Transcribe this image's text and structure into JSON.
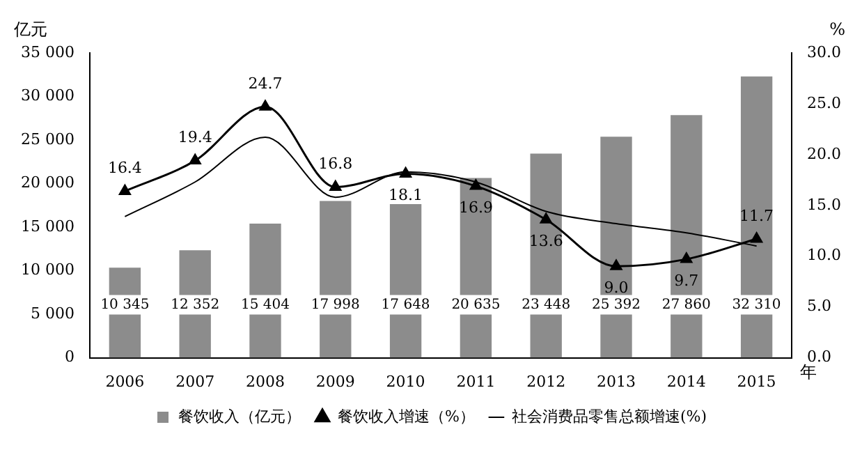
{
  "chart_data": {
    "type": "bar",
    "categories": [
      "2006",
      "2007",
      "2008",
      "2009",
      "2010",
      "2011",
      "2012",
      "2013",
      "2014",
      "2015"
    ],
    "xlabel": "年",
    "ylabel": "亿元",
    "y2label": "%",
    "series": [
      {
        "name": "餐饮收入（亿元）",
        "color": "#8c8c8c",
        "values": [
          10345,
          12352,
          15404,
          17998,
          17648,
          20635,
          23448,
          25392,
          27860,
          32310
        ],
        "value_labels": [
          "10 345",
          "12 352",
          "15 404",
          "17 998",
          "17 648",
          "20 635",
          "23 448",
          "25 392",
          "27 860",
          "32 310"
        ]
      },
      {
        "name": "餐饮收入增速（%）",
        "type": "line",
        "axis": "y2",
        "color": "#000000",
        "marker": "triangle",
        "values": [
          16.4,
          19.4,
          24.7,
          16.8,
          18.1,
          16.9,
          13.6,
          9.0,
          9.7,
          11.7
        ],
        "value_labels": [
          "16.4",
          "19.4",
          "24.7",
          "16.8",
          "18.1",
          "16.9",
          "13.6",
          "9.0",
          "9.7",
          "11.7"
        ]
      },
      {
        "name": "社会消费品零售总额增速(%)",
        "type": "line",
        "axis": "y2",
        "color": "#000000",
        "marker": "none",
        "values": [
          13.9,
          17.3,
          21.7,
          15.8,
          18.3,
          17.3,
          14.4,
          13.2,
          12.3,
          11.0
        ]
      }
    ],
    "ylim": [
      0,
      35000
    ],
    "yticks": [
      {
        "value": 0,
        "label": "0"
      },
      {
        "value": 5000,
        "label": "5 000"
      },
      {
        "value": 10000,
        "label": "10 000"
      },
      {
        "value": 15000,
        "label": "15 000"
      },
      {
        "value": 20000,
        "label": "20 000"
      },
      {
        "value": 25000,
        "label": "25 000"
      },
      {
        "value": 30000,
        "label": "30 000"
      },
      {
        "value": 35000,
        "label": "35 000"
      }
    ],
    "y2lim": [
      0,
      30
    ],
    "y2ticks": [
      {
        "value": 0,
        "label": "0.0"
      },
      {
        "value": 5,
        "label": "5.0"
      },
      {
        "value": 10,
        "label": "10.0"
      },
      {
        "value": 15,
        "label": "15.0"
      },
      {
        "value": 20,
        "label": "20.0"
      },
      {
        "value": 25,
        "label": "25.0"
      },
      {
        "value": 30,
        "label": "30.0"
      }
    ],
    "grid": false,
    "legend": "bottom"
  }
}
